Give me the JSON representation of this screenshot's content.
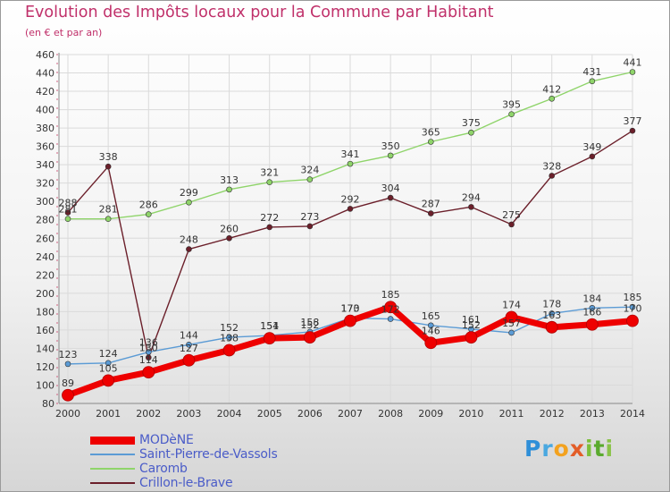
{
  "header": {
    "title": "Evolution des Impôts locaux pour la Commune par Habitant",
    "subtitle": "(en € et par an)"
  },
  "logo": {
    "text": "Proxiti",
    "letters": [
      "P",
      "r",
      "o",
      "x",
      "i",
      "t",
      "i"
    ]
  },
  "chart_data": {
    "type": "line",
    "title": "Evolution des Impôts locaux pour la Commune par Habitant",
    "subtitle": "(en € et par an)",
    "x": [
      2000,
      2001,
      2002,
      2003,
      2004,
      2005,
      2006,
      2007,
      2008,
      2009,
      2010,
      2011,
      2012,
      2013,
      2014
    ],
    "ylim": [
      80,
      460
    ],
    "yticks": [
      80,
      100,
      120,
      140,
      160,
      180,
      200,
      220,
      240,
      260,
      280,
      300,
      320,
      340,
      360,
      380,
      400,
      420,
      440,
      460
    ],
    "grid": true,
    "legend_position": "bottom-left",
    "series": [
      {
        "name": "MODèNE",
        "color": "#ee0000",
        "values": [
          89,
          105,
          114,
          127,
          138,
          151,
          152,
          170,
          185,
          146,
          152,
          174,
          163,
          166,
          170
        ]
      },
      {
        "name": "Saint-Pierre-de-Vassols",
        "color": "#5b9bd5",
        "values": [
          123,
          124,
          136,
          144,
          152,
          154,
          158,
          173,
          172,
          165,
          161,
          157,
          178,
          184,
          185
        ]
      },
      {
        "name": "Caromb",
        "color": "#8fd46a",
        "values": [
          281,
          281,
          286,
          299,
          313,
          321,
          324,
          341,
          350,
          365,
          375,
          395,
          412,
          431,
          441
        ]
      },
      {
        "name": "Crillon-le-Brave",
        "color": "#6b1f2a",
        "values": [
          288,
          338,
          130,
          248,
          260,
          272,
          273,
          292,
          304,
          287,
          294,
          275,
          328,
          349,
          377
        ]
      }
    ]
  }
}
